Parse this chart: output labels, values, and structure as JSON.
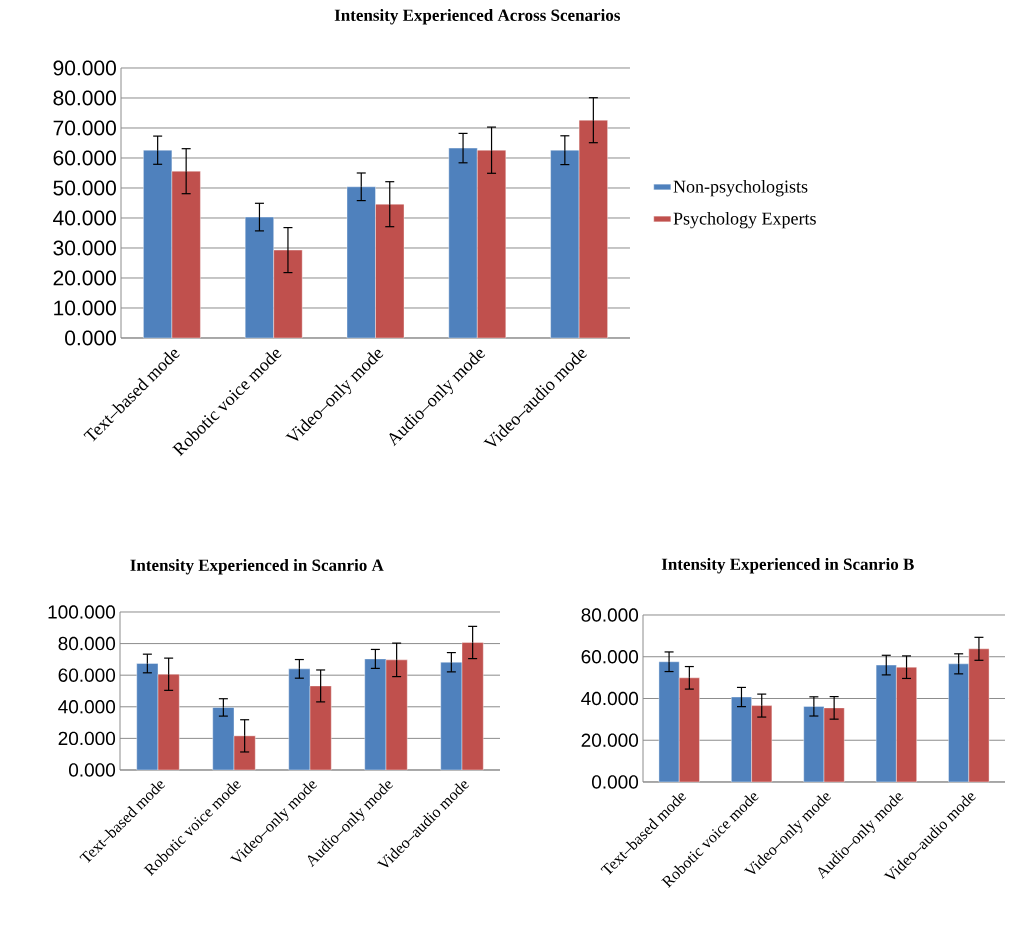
{
  "chart_data": [
    {
      "type": "bar",
      "title": "Intensity Experienced Across Scenarios",
      "categories": [
        "Text–based mode",
        "Robotic voice mode",
        "Video–only mode",
        "Audio–only mode",
        "Video–audio mode"
      ],
      "series": [
        {
          "name": "Non-psychologists",
          "color": "#4f81bd",
          "values": [
            62.6,
            40.3,
            50.4,
            63.3,
            62.6
          ],
          "errors": [
            4.7,
            4.6,
            4.6,
            4.9,
            4.8
          ]
        },
        {
          "name": "Psychology Experts",
          "color": "#c0504d",
          "values": [
            55.6,
            29.3,
            44.6,
            62.6,
            72.6
          ],
          "errors": [
            7.5,
            7.5,
            7.5,
            7.7,
            7.5
          ]
        }
      ],
      "ylim": [
        0,
        90
      ],
      "yticks": [
        {
          "value": 0,
          "label": "0.000"
        },
        {
          "value": 10,
          "label": "10.000"
        },
        {
          "value": 20,
          "label": "20.000"
        },
        {
          "value": 30,
          "label": "30.000"
        },
        {
          "value": 40,
          "label": "40.000"
        },
        {
          "value": 50,
          "label": "50.000"
        },
        {
          "value": 60,
          "label": "60.000"
        },
        {
          "value": 70,
          "label": "70.000"
        },
        {
          "value": 80,
          "label": "80.000"
        },
        {
          "value": 90,
          "label": "90.000"
        }
      ],
      "grid": "y",
      "legend": "right"
    },
    {
      "type": "bar",
      "title": "Intensity Experienced in Scanrio A",
      "categories": [
        "Text–based mode",
        "Robotic voice mode",
        "Video–only mode",
        "Audio–only mode",
        "Video–audio mode"
      ],
      "series": [
        {
          "color": "#4f81bd",
          "values": [
            67.4,
            39.6,
            64.0,
            70.3,
            68.2
          ],
          "errors": [
            5.9,
            5.5,
            5.9,
            6.0,
            6.1
          ]
        },
        {
          "color": "#c0504d",
          "values": [
            60.6,
            21.6,
            53.2,
            69.7,
            80.7
          ],
          "errors": [
            10.2,
            10.2,
            10.1,
            10.6,
            10.2
          ]
        }
      ],
      "ylim": [
        0,
        100
      ],
      "yticks": [
        {
          "value": 0,
          "label": "0.000"
        },
        {
          "value": 20,
          "label": "20.000"
        },
        {
          "value": 40,
          "label": "40.000"
        },
        {
          "value": 60,
          "label": "60.000"
        },
        {
          "value": 80,
          "label": "80.000"
        },
        {
          "value": 100,
          "label": "100.000"
        }
      ],
      "grid": "y"
    },
    {
      "type": "bar",
      "title": "Intensity Experienced in Scanrio B",
      "categories": [
        "Text–based mode",
        "Robotic voice mode",
        "Video–only mode",
        "Audio–only mode",
        "Video–audio mode"
      ],
      "series": [
        {
          "color": "#4f81bd",
          "values": [
            57.6,
            40.7,
            36.2,
            56.0,
            56.6
          ],
          "errors": [
            4.7,
            4.6,
            4.6,
            4.7,
            4.8
          ]
        },
        {
          "color": "#c0504d",
          "values": [
            49.9,
            36.6,
            35.5,
            55.0,
            63.8
          ],
          "errors": [
            5.4,
            5.5,
            5.4,
            5.4,
            5.5
          ]
        }
      ],
      "ylim": [
        0,
        80
      ],
      "yticks": [
        {
          "value": 0,
          "label": "0.000"
        },
        {
          "value": 20,
          "label": "20.000"
        },
        {
          "value": 40,
          "label": "40.000"
        },
        {
          "value": 60,
          "label": "60.000"
        },
        {
          "value": 80,
          "label": "80.000"
        }
      ],
      "grid": "y"
    }
  ]
}
